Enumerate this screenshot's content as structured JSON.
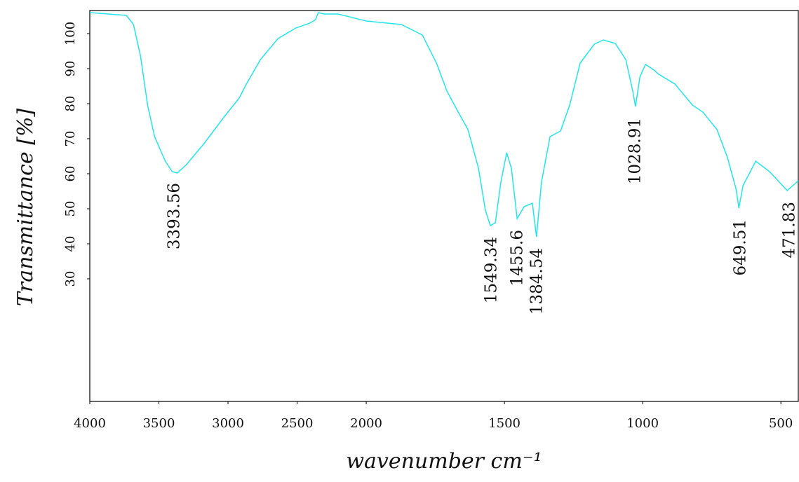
{
  "chart_data": {
    "type": "line",
    "x_label": "wavenumber cm⁻¹",
    "y_label": "Transmittance [%]",
    "xlim": [
      4000,
      437
    ],
    "ylim": [
      -5,
      106.6
    ],
    "xticks": [
      4000,
      3500,
      3000,
      2500,
      2000,
      1500,
      1000,
      500
    ],
    "yticks": [
      30,
      40,
      50,
      60,
      70,
      80,
      90,
      100
    ],
    "xscale_break": 2000,
    "xscale_compress": 2,
    "series": [
      {
        "name": "Transmittance",
        "color": "#22e6ec",
        "x": [
          4000,
          3735,
          3684,
          3633,
          3582,
          3531,
          3454,
          3403,
          3367,
          3301,
          3174,
          3021,
          2919,
          2867,
          2765,
          2638,
          2510,
          2408,
          2367,
          2347,
          2306,
          2204,
          2000,
          1873,
          1797,
          1746,
          1708,
          1670,
          1632,
          1594,
          1569,
          1551,
          1533,
          1513,
          1492,
          1475,
          1454,
          1429,
          1399,
          1384,
          1366,
          1335,
          1297,
          1264,
          1226,
          1175,
          1142,
          1099,
          1061,
          1036,
          1026,
          1010,
          990,
          959,
          942,
          883,
          820,
          782,
          731,
          693,
          662,
          652,
          637,
          591,
          541,
          477,
          437
        ],
        "values": [
          106,
          105.2,
          102.6,
          93.6,
          79.6,
          70.6,
          63.6,
          60.6,
          60.2,
          62.6,
          68.6,
          76.6,
          81.6,
          85.6,
          92.6,
          98.6,
          101.6,
          103,
          104,
          106,
          105.6,
          105.6,
          103.6,
          102.6,
          99.6,
          91.6,
          83.6,
          78,
          72.6,
          61.6,
          49.6,
          45.2,
          46,
          57.6,
          66,
          61.6,
          47.2,
          50.6,
          51.6,
          42,
          57.6,
          70.6,
          72.2,
          79.6,
          91.6,
          97,
          98.2,
          97.2,
          92.6,
          83.6,
          79.2,
          87.6,
          91.2,
          89.6,
          88.4,
          85.6,
          79.6,
          77.6,
          72.6,
          64.6,
          55.6,
          50.2,
          56.6,
          63.6,
          60.6,
          55.2,
          58
        ]
      }
    ],
    "peaks": [
      3393.56,
      1549.34,
      1455.6,
      1384.54,
      1028.91,
      649.51,
      471.83
    ]
  }
}
